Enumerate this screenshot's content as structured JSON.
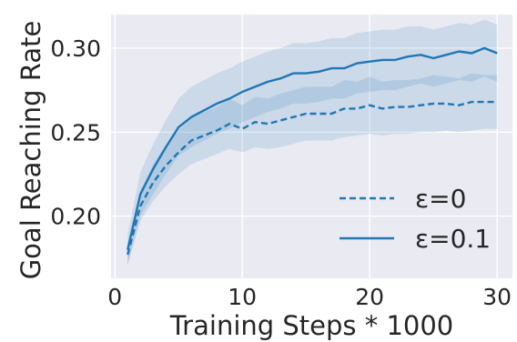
{
  "chart_data": {
    "type": "line",
    "xlabel": "Training Steps * 1000",
    "ylabel": "Goal Reaching Rate",
    "xlim": [
      -0.3,
      31.2
    ],
    "ylim": [
      0.163,
      0.32
    ],
    "xticks": [
      0,
      10,
      20,
      30
    ],
    "yticks": [
      0.2,
      0.25,
      0.3
    ],
    "x_tick_labels": [
      "0",
      "10",
      "20",
      "30"
    ],
    "y_tick_labels": [
      "0.20",
      "0.25",
      "0.30"
    ],
    "grid": true,
    "legend_position": "lower-right",
    "colors": {
      "line": "#1f77b4",
      "band": "#1f77b4",
      "background": "#eaeaf2",
      "grid": "#ffffff"
    },
    "x": [
      1,
      2,
      3,
      4,
      5,
      6,
      7,
      8,
      9,
      10,
      11,
      12,
      13,
      14,
      15,
      16,
      17,
      18,
      19,
      20,
      21,
      22,
      23,
      24,
      25,
      26,
      27,
      28,
      29,
      30
    ],
    "series": [
      {
        "name": "ε=0",
        "style": "dashed",
        "values": [
          0.177,
          0.206,
          0.22,
          0.23,
          0.238,
          0.245,
          0.248,
          0.251,
          0.255,
          0.252,
          0.256,
          0.255,
          0.257,
          0.259,
          0.261,
          0.261,
          0.261,
          0.264,
          0.264,
          0.266,
          0.264,
          0.265,
          0.265,
          0.266,
          0.267,
          0.267,
          0.266,
          0.268,
          0.268,
          0.268
        ],
        "lower": [
          0.171,
          0.197,
          0.209,
          0.218,
          0.225,
          0.231,
          0.234,
          0.237,
          0.24,
          0.238,
          0.241,
          0.24,
          0.241,
          0.243,
          0.245,
          0.245,
          0.245,
          0.247,
          0.248,
          0.249,
          0.248,
          0.249,
          0.249,
          0.25,
          0.25,
          0.251,
          0.25,
          0.251,
          0.252,
          0.252
        ],
        "upper": [
          0.183,
          0.215,
          0.231,
          0.242,
          0.251,
          0.259,
          0.262,
          0.265,
          0.27,
          0.266,
          0.271,
          0.27,
          0.273,
          0.275,
          0.277,
          0.277,
          0.277,
          0.281,
          0.28,
          0.283,
          0.28,
          0.281,
          0.281,
          0.282,
          0.284,
          0.283,
          0.282,
          0.285,
          0.284,
          0.284
        ]
      },
      {
        "name": "ε=0.1",
        "style": "solid",
        "values": [
          0.18,
          0.213,
          0.228,
          0.241,
          0.253,
          0.259,
          0.263,
          0.267,
          0.27,
          0.274,
          0.277,
          0.28,
          0.282,
          0.285,
          0.285,
          0.286,
          0.288,
          0.288,
          0.291,
          0.292,
          0.293,
          0.293,
          0.295,
          0.296,
          0.294,
          0.296,
          0.298,
          0.297,
          0.3,
          0.297
        ],
        "lower": [
          0.171,
          0.2,
          0.213,
          0.225,
          0.236,
          0.241,
          0.245,
          0.249,
          0.252,
          0.256,
          0.259,
          0.262,
          0.264,
          0.267,
          0.267,
          0.268,
          0.27,
          0.27,
          0.273,
          0.274,
          0.275,
          0.275,
          0.277,
          0.279,
          0.277,
          0.279,
          0.281,
          0.28,
          0.283,
          0.28
        ],
        "upper": [
          0.189,
          0.226,
          0.243,
          0.257,
          0.27,
          0.277,
          0.281,
          0.285,
          0.288,
          0.292,
          0.295,
          0.298,
          0.3,
          0.303,
          0.303,
          0.304,
          0.306,
          0.306,
          0.309,
          0.31,
          0.311,
          0.311,
          0.313,
          0.313,
          0.311,
          0.313,
          0.315,
          0.314,
          0.317,
          0.314
        ]
      }
    ]
  }
}
